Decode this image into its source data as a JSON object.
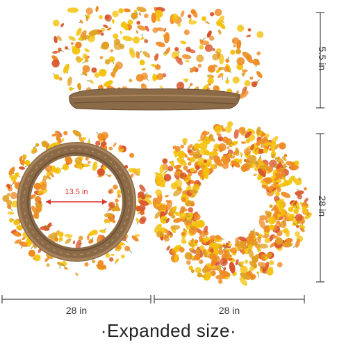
{
  "product": {
    "views": [
      "side-view-wreath",
      "back-view-wreath",
      "front-view-wreath"
    ]
  },
  "dimensions": {
    "height_label": "5.5 in",
    "inner_diameter_label": "13.5 in",
    "back_width_label": "28 in",
    "front_width_label": "28 in",
    "front_height_label": "28 in"
  },
  "caption": "·Expanded size·",
  "colors": {
    "vine": "#8b6a48",
    "leaf_red": "#d9542a",
    "leaf_orange": "#ef8a22",
    "flower_yellow": "#f4c20d",
    "stem_green": "#7e9a4a",
    "measure_line": "#444444",
    "inner_arrow": "#d9342a"
  }
}
